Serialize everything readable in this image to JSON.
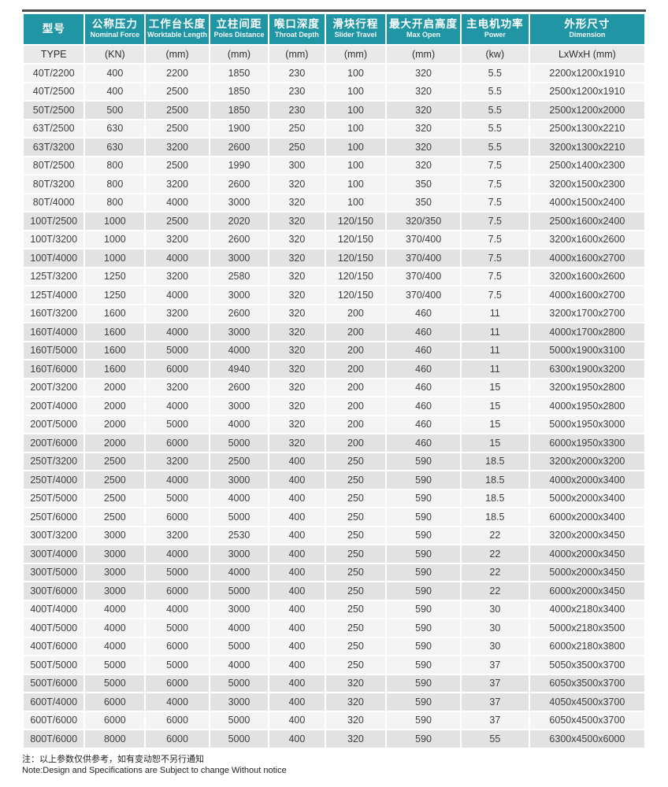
{
  "colors": {
    "header_teal": "#2095a3",
    "subheader_bg": "#e9e9e9",
    "row_light": "#f4f4f4",
    "row_shaded": "#e2e2e2",
    "top_rule": "#4b4f50"
  },
  "table": {
    "columns": [
      {
        "zh": "型号",
        "en": ""
      },
      {
        "zh": "公称压力",
        "en": "Nominal Force"
      },
      {
        "zh": "工作台长度",
        "en": "Worktable Length"
      },
      {
        "zh": "立柱间距",
        "en": "Poles Distance"
      },
      {
        "zh": "喉口深度",
        "en": "Throat Depth"
      },
      {
        "zh": "滑块行程",
        "en": "Slider Travel"
      },
      {
        "zh": "最大开启高度",
        "en": "Max Open"
      },
      {
        "zh": "主电机功率",
        "en": "Power"
      },
      {
        "zh": "外形尺寸",
        "en": "Dimension"
      }
    ],
    "units": [
      "TYPE",
      "(KN)",
      "(mm)",
      "(mm)",
      "(mm)",
      "(mm)",
      "(mm)",
      "(kw)",
      "LxWxH (mm)"
    ],
    "rows": [
      [
        "40T/2200",
        "400",
        "2200",
        "1850",
        "230",
        "100",
        "320",
        "5.5",
        "2200x1200x1910"
      ],
      [
        "40T/2500",
        "400",
        "2500",
        "1850",
        "230",
        "100",
        "320",
        "5.5",
        "2500x1200x1910"
      ],
      [
        "50T/2500",
        "500",
        "2500",
        "1850",
        "230",
        "100",
        "320",
        "5.5",
        "2500x1200x2000"
      ],
      [
        "63T/2500",
        "630",
        "2500",
        "1900",
        "250",
        "100",
        "320",
        "5.5",
        "2500x1300x2210"
      ],
      [
        "63T/3200",
        "630",
        "3200",
        "2600",
        "250",
        "100",
        "320",
        "5.5",
        "3200x1300x2210"
      ],
      [
        "80T/2500",
        "800",
        "2500",
        "1990",
        "300",
        "100",
        "320",
        "7.5",
        "2500x1400x2300"
      ],
      [
        "80T/3200",
        "800",
        "3200",
        "2600",
        "320",
        "100",
        "350",
        "7.5",
        "3200x1500x2300"
      ],
      [
        "80T/4000",
        "800",
        "4000",
        "3000",
        "320",
        "100",
        "350",
        "7.5",
        "4000x1500x2400"
      ],
      [
        "100T/2500",
        "1000",
        "2500",
        "2020",
        "320",
        "120/150",
        "320/350",
        "7.5",
        "2500x1600x2400"
      ],
      [
        "100T/3200",
        "1000",
        "3200",
        "2600",
        "320",
        "120/150",
        "370/400",
        "7.5",
        "3200x1600x2600"
      ],
      [
        "100T/4000",
        "1000",
        "4000",
        "3000",
        "320",
        "120/150",
        "370/400",
        "7.5",
        "4000x1600x2700"
      ],
      [
        "125T/3200",
        "1250",
        "3200",
        "2580",
        "320",
        "120/150",
        "370/400",
        "7.5",
        "3200x1600x2600"
      ],
      [
        "125T/4000",
        "1250",
        "4000",
        "3000",
        "320",
        "120/150",
        "370/400",
        "7.5",
        "4000x1600x2700"
      ],
      [
        "160T/3200",
        "1600",
        "3200",
        "2600",
        "320",
        "200",
        "460",
        "11",
        "3200x1700x2700"
      ],
      [
        "160T/4000",
        "1600",
        "4000",
        "3000",
        "320",
        "200",
        "460",
        "11",
        "4000x1700x2800"
      ],
      [
        "160T/5000",
        "1600",
        "5000",
        "4000",
        "320",
        "200",
        "460",
        "11",
        "5000x1900x3100"
      ],
      [
        "160T/6000",
        "1600",
        "6000",
        "4940",
        "320",
        "200",
        "460",
        "11",
        "6300x1900x3200"
      ],
      [
        "200T/3200",
        "2000",
        "3200",
        "2600",
        "320",
        "200",
        "460",
        "15",
        "3200x1950x2800"
      ],
      [
        "200T/4000",
        "2000",
        "4000",
        "3000",
        "320",
        "200",
        "460",
        "15",
        "4000x1950x2800"
      ],
      [
        "200T/5000",
        "2000",
        "5000",
        "4000",
        "320",
        "200",
        "460",
        "15",
        "5000x1950x3000"
      ],
      [
        "200T/6000",
        "2000",
        "6000",
        "5000",
        "320",
        "200",
        "460",
        "15",
        "6000x1950x3300"
      ],
      [
        "250T/3200",
        "2500",
        "3200",
        "2500",
        "400",
        "250",
        "590",
        "18.5",
        "3200x2000x3200"
      ],
      [
        "250T/4000",
        "2500",
        "4000",
        "3000",
        "400",
        "250",
        "590",
        "18.5",
        "4000x2000x3400"
      ],
      [
        "250T/5000",
        "2500",
        "5000",
        "4000",
        "400",
        "250",
        "590",
        "18.5",
        "5000x2000x3400"
      ],
      [
        "250T/6000",
        "2500",
        "6000",
        "5000",
        "400",
        "250",
        "590",
        "18.5",
        "6000x2000x3400"
      ],
      [
        "300T/3200",
        "3000",
        "3200",
        "2530",
        "400",
        "250",
        "590",
        "22",
        "3200x2000x3450"
      ],
      [
        "300T/4000",
        "3000",
        "4000",
        "3000",
        "400",
        "250",
        "590",
        "22",
        "4000x2000x3450"
      ],
      [
        "300T/5000",
        "3000",
        "5000",
        "4000",
        "400",
        "250",
        "590",
        "22",
        "5000x2000x3450"
      ],
      [
        "300T/6000",
        "3000",
        "6000",
        "5000",
        "400",
        "250",
        "590",
        "22",
        "6000x2000x3450"
      ],
      [
        "400T/4000",
        "4000",
        "4000",
        "3000",
        "400",
        "250",
        "590",
        "30",
        "4000x2180x3400"
      ],
      [
        "400T/5000",
        "4000",
        "5000",
        "4000",
        "400",
        "250",
        "590",
        "30",
        "5000x2180x3500"
      ],
      [
        "400T/6000",
        "4000",
        "6000",
        "5000",
        "400",
        "250",
        "590",
        "30",
        "6000x2180x3800"
      ],
      [
        "500T/5000",
        "5000",
        "5000",
        "4000",
        "400",
        "250",
        "590",
        "37",
        "5050x3500x3700"
      ],
      [
        "500T/6000",
        "5000",
        "6000",
        "5000",
        "400",
        "320",
        "590",
        "37",
        "6050x3500x3700"
      ],
      [
        "600T/4000",
        "6000",
        "4000",
        "3000",
        "400",
        "320",
        "590",
        "37",
        "4050x4500x3700"
      ],
      [
        "600T/6000",
        "6000",
        "6000",
        "5000",
        "400",
        "320",
        "590",
        "37",
        "6050x4500x3700"
      ],
      [
        "800T/6000",
        "8000",
        "6000",
        "5000",
        "400",
        "320",
        "590",
        "55",
        "6300x4500x6000"
      ]
    ],
    "row_shading": [
      0,
      0,
      1,
      0,
      1,
      0,
      0,
      0,
      1,
      0,
      1,
      0,
      0,
      0,
      1,
      1,
      1,
      0,
      0,
      0,
      1,
      1,
      1,
      0,
      0,
      0,
      1,
      1,
      1,
      0,
      0,
      0,
      0,
      1,
      1,
      0,
      1
    ]
  },
  "notes": {
    "zh": "注：以上参数仅供参考，如有变动恕不另行通知",
    "en": "Note:Design and Specifications are Subject to change Without notice"
  }
}
